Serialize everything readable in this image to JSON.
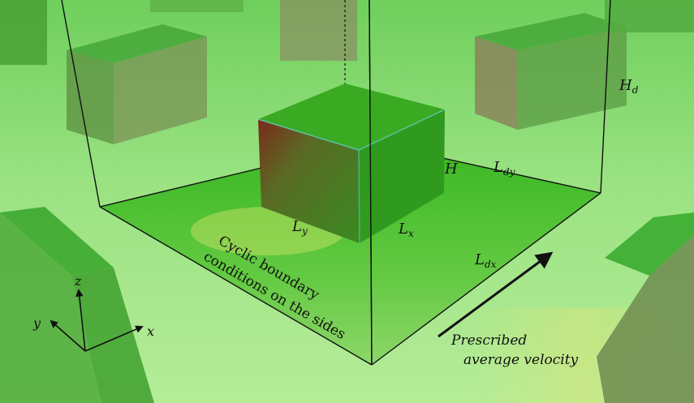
{
  "labels": {
    "hd": "H",
    "hd_sub": "d",
    "h": "H",
    "ldy": "L",
    "ldy_sub": "dy",
    "ly": "L",
    "ly_sub": "y",
    "lx": "L",
    "lx_sub": "x",
    "ldx": "L",
    "ldx_sub": "dx",
    "cyclic_line1": "Cyclic boundary",
    "cyclic_line2": "conditions on the sides",
    "velocity_line1": "Prescribed",
    "velocity_line2": "average velocity",
    "axis_x": "x",
    "axis_y": "y",
    "axis_z": "z"
  },
  "colors": {
    "ground": "#8fdc78",
    "ground_light": "#b8ee9a",
    "floor": "#3fbf22",
    "cube_top": "#2fa81c",
    "cube_front": "#4e7a24",
    "cube_side": "#2f9a1e",
    "edge": "#111111"
  }
}
